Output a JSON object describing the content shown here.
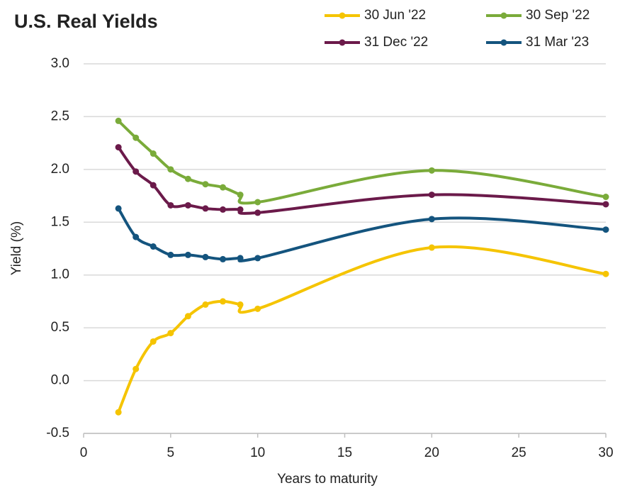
{
  "chart_data": {
    "type": "line",
    "title": "U.S. Real Yields",
    "x_label": "Years to maturity",
    "y_label": "Yield (%)",
    "x": [
      2,
      3,
      4,
      5,
      6,
      7,
      8,
      9,
      10,
      20,
      30
    ],
    "series": [
      {
        "name": "30 Jun '22",
        "color": "#f5c400",
        "values": [
          -0.3,
          0.11,
          0.37,
          0.45,
          0.61,
          0.72,
          0.75,
          0.72,
          0.68,
          1.26,
          1.01
        ]
      },
      {
        "name": "30 Sep '22",
        "color": "#7aab3a",
        "values": [
          2.46,
          2.3,
          2.15,
          2.0,
          1.91,
          1.86,
          1.83,
          1.76,
          1.69,
          1.99,
          1.74
        ]
      },
      {
        "name": "31 Dec '22",
        "color": "#6b1a4a",
        "values": [
          2.21,
          1.98,
          1.85,
          1.66,
          1.66,
          1.63,
          1.62,
          1.62,
          1.59,
          1.76,
          1.67
        ]
      },
      {
        "name": "31 Mar '23",
        "color": "#14547e",
        "values": [
          1.63,
          1.36,
          1.27,
          1.19,
          1.19,
          1.17,
          1.15,
          1.16,
          1.16,
          1.53,
          1.43
        ]
      }
    ],
    "xlim": [
      0,
      30
    ],
    "xticks": [
      0,
      5,
      10,
      15,
      20,
      25,
      30
    ],
    "ylim": [
      -0.5,
      3.0
    ],
    "yticks": [
      {
        "value": -0.5,
        "label": "-0.5"
      },
      {
        "value": 0,
        "label": "0.0"
      },
      {
        "value": 0.5,
        "label": "0.5"
      },
      {
        "value": 1,
        "label": "1.0"
      },
      {
        "value": 1.5,
        "label": "1.5"
      },
      {
        "value": 2,
        "label": "2.0"
      },
      {
        "value": 2.5,
        "label": "2.5"
      },
      {
        "value": 3,
        "label": "3.0"
      }
    ],
    "grid": true,
    "legend": "top"
  }
}
